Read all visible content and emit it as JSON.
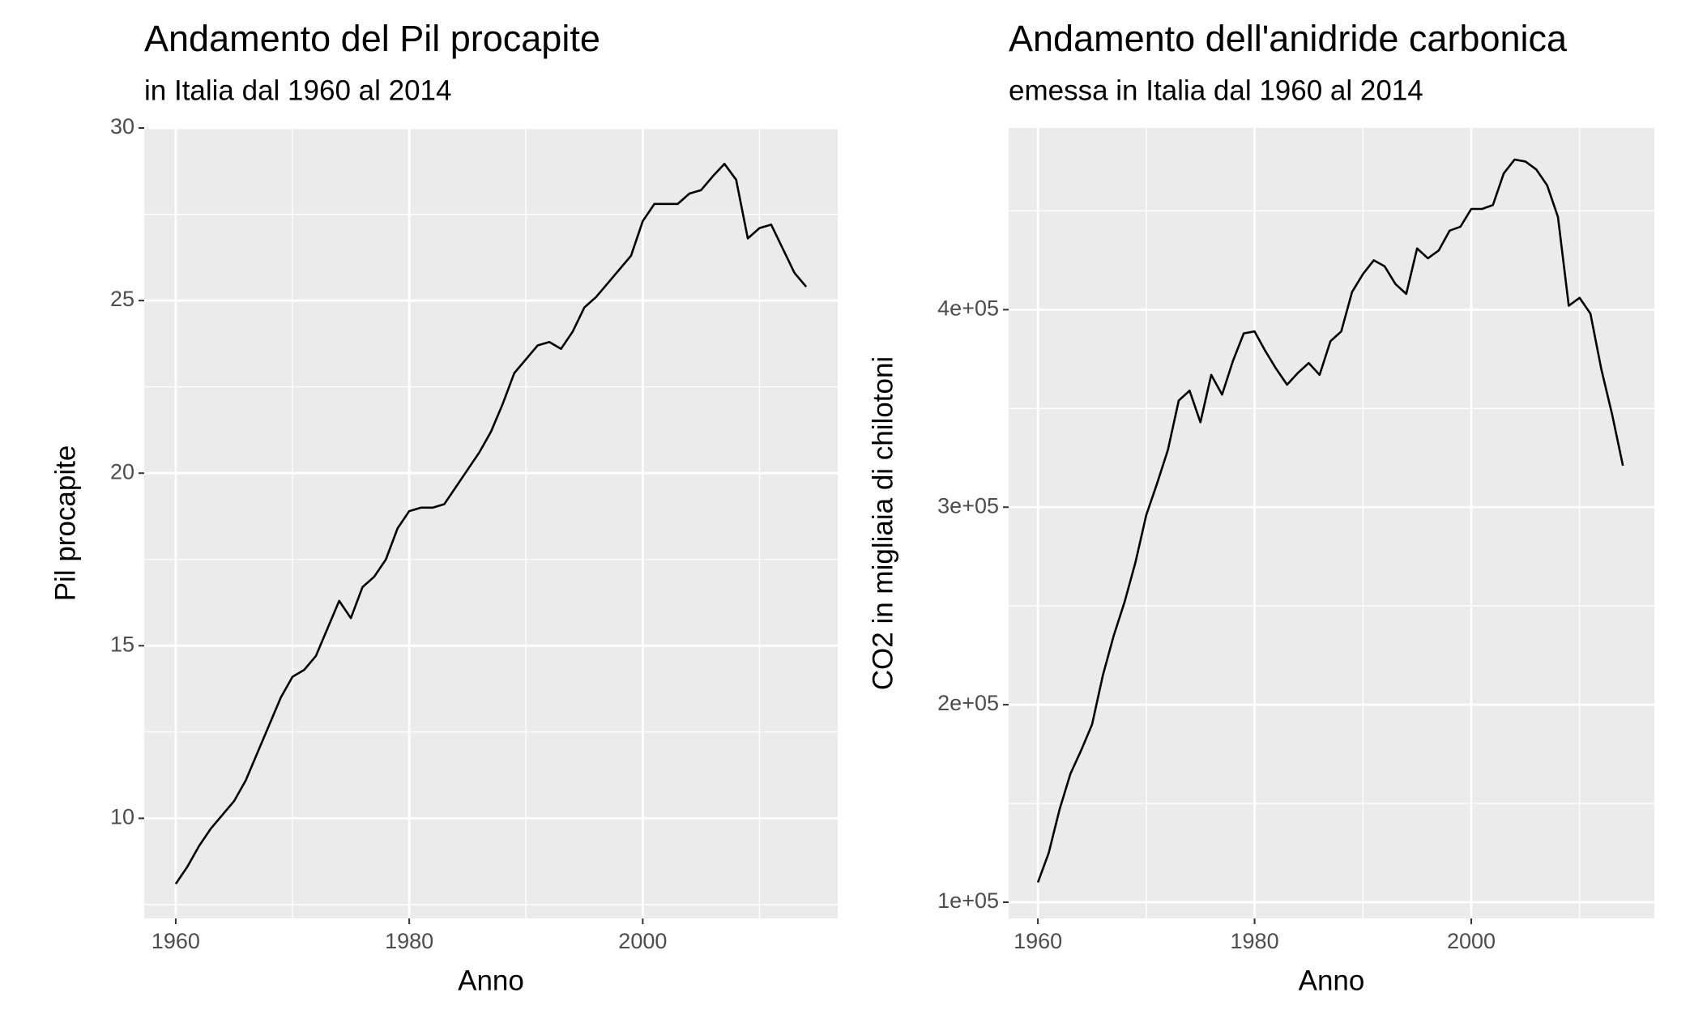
{
  "chart_data": [
    {
      "type": "line",
      "title": "Andamento del Pil procapite",
      "subtitle": "in Italia dal 1960 al 2014",
      "x_label": "Anno",
      "y_label": "Pil procapite",
      "grid": true,
      "minor_grid": true,
      "xlim": [
        1957.3,
        2016.7
      ],
      "xticks": [
        1960,
        1980,
        2000
      ],
      "ylim": [
        7.1,
        30
      ],
      "yticks": [
        10,
        15,
        20,
        25,
        30
      ],
      "x": [
        1960,
        1961,
        1962,
        1963,
        1964,
        1965,
        1966,
        1967,
        1968,
        1969,
        1970,
        1971,
        1972,
        1973,
        1974,
        1975,
        1976,
        1977,
        1978,
        1979,
        1980,
        1981,
        1982,
        1983,
        1984,
        1985,
        1986,
        1987,
        1988,
        1989,
        1990,
        1991,
        1992,
        1993,
        1994,
        1995,
        1996,
        1997,
        1998,
        1999,
        2000,
        2001,
        2002,
        2003,
        2004,
        2005,
        2006,
        2007,
        2008,
        2009,
        2010,
        2011,
        2012,
        2013,
        2014
      ],
      "series": [
        {
          "color": "#000000",
          "values": [
            8.1,
            8.6,
            9.2,
            9.7,
            10.1,
            10.5,
            11.1,
            11.9,
            12.7,
            13.5,
            14.1,
            14.3,
            14.7,
            15.5,
            16.3,
            15.8,
            16.7,
            17.0,
            17.5,
            18.4,
            18.9,
            19.0,
            19.0,
            19.1,
            19.6,
            20.1,
            20.6,
            21.2,
            22.0,
            22.9,
            23.3,
            23.7,
            23.8,
            23.6,
            24.1,
            24.8,
            25.1,
            25.5,
            25.9,
            26.3,
            27.3,
            27.8,
            27.8,
            27.8,
            28.1,
            28.2,
            28.6,
            28.96,
            28.5,
            26.8,
            27.1,
            27.2,
            26.5,
            25.8,
            25.4
          ]
        }
      ]
    },
    {
      "type": "line",
      "title": "Andamento dell'anidride carbonica",
      "subtitle": "emessa in Italia dal 1960 al 2014",
      "x_label": "Anno",
      "y_label": "CO2 in migliaia di chilotoni",
      "grid": true,
      "minor_grid": true,
      "xlim": [
        1957.3,
        2016.9
      ],
      "xticks": [
        1960,
        1980,
        2000
      ],
      "ylim": [
        91800,
        492000
      ],
      "yticks": [
        {
          "value": 100000,
          "label": "1e+05"
        },
        {
          "value": 200000,
          "label": "2e+05"
        },
        {
          "value": 300000,
          "label": "3e+05"
        },
        {
          "value": 400000,
          "label": "4e+05"
        }
      ],
      "x": [
        1960,
        1961,
        1962,
        1963,
        1964,
        1965,
        1966,
        1967,
        1968,
        1969,
        1970,
        1971,
        1972,
        1973,
        1974,
        1975,
        1976,
        1977,
        1978,
        1979,
        1980,
        1981,
        1982,
        1983,
        1984,
        1985,
        1986,
        1987,
        1988,
        1989,
        1990,
        1991,
        1992,
        1993,
        1994,
        1995,
        1996,
        1997,
        1998,
        1999,
        2000,
        2001,
        2002,
        2003,
        2004,
        2005,
        2006,
        2007,
        2008,
        2009,
        2010,
        2011,
        2012,
        2013,
        2014
      ],
      "series": [
        {
          "color": "#000000",
          "values": [
            110000,
            125000,
            147000,
            165000,
            177000,
            190000,
            215000,
            235000,
            252000,
            272000,
            296000,
            312000,
            329000,
            354000,
            359000,
            343000,
            367000,
            357000,
            374000,
            388000,
            389000,
            379000,
            370000,
            362000,
            368000,
            373000,
            367000,
            384000,
            389000,
            409000,
            418000,
            425000,
            422000,
            413000,
            408000,
            431000,
            426000,
            430000,
            440000,
            442000,
            451000,
            451000,
            453000,
            469000,
            476000,
            475000,
            471000,
            463000,
            447000,
            402000,
            406000,
            398000,
            370000,
            347000,
            321000
          ]
        }
      ]
    }
  ]
}
